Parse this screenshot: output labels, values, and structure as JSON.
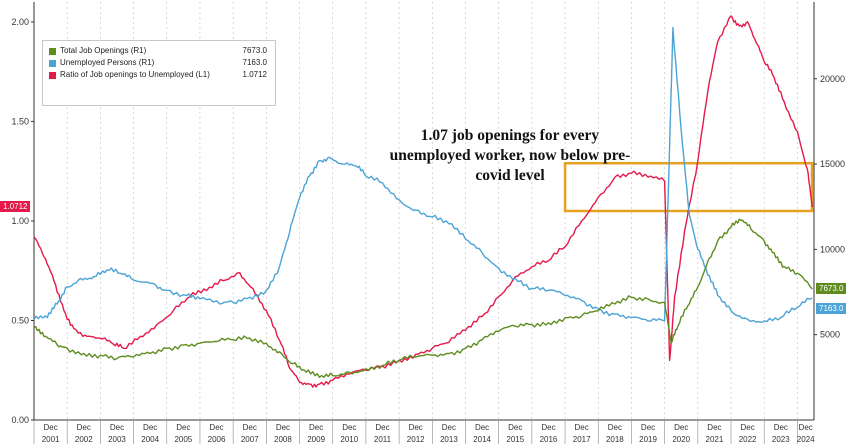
{
  "chart_data": {
    "type": "line",
    "title": "",
    "xlabel": "",
    "x_range": [
      2001.0,
      2024.5
    ],
    "x_years": [
      "2001",
      "2002",
      "2003",
      "2004",
      "2005",
      "2006",
      "2007",
      "2008",
      "2009",
      "2010",
      "2011",
      "2012",
      "2013",
      "2014",
      "2015",
      "2016",
      "2017",
      "2018",
      "2019",
      "2020",
      "2021",
      "2022",
      "2023",
      "2024"
    ],
    "x_minor_label": "Dec",
    "left_axis": {
      "min": 0.0,
      "max": 2.1,
      "ticks": [
        "0.00",
        "0.50",
        "1.00",
        "1.50",
        "2.00"
      ],
      "tick_values": [
        0,
        0.5,
        1.0,
        1.5,
        2.0
      ]
    },
    "right_axis": {
      "min": 0,
      "max": 24500,
      "ticks": [
        "5000",
        "10000",
        "15000",
        "20000"
      ],
      "tick_values": [
        5000,
        10000,
        15000,
        20000
      ]
    },
    "grid": "vertical-dashed",
    "legend": {
      "placement": "top-left",
      "entries": [
        {
          "label": "Total Job Openings (R1)",
          "value": "7673.0",
          "color": "#5f8c1e"
        },
        {
          "label": "Unemployed Persons (R1)",
          "value": "7163.0",
          "color": "#4ba3d6"
        },
        {
          "label": "Ratio of Job openings to Unemployed (L1)",
          "value": "1.0712",
          "color": "#e5194a"
        }
      ]
    },
    "annotation": {
      "lines": [
        "1.07 job openings for every",
        "unemployed worker, now below pre-",
        "covid level"
      ],
      "highlight_box": {
        "x0": 2017.0,
        "x1": 2024.5,
        "y0": 1.05,
        "y1": 1.29,
        "color": "#e8a020"
      }
    },
    "last_value_tags": [
      {
        "text": "1.0712",
        "axis": "left",
        "value": 1.0712,
        "color": "#e5194a"
      },
      {
        "text": "7673.0",
        "axis": "right",
        "value": 7673,
        "color": "#5f8c1e"
      },
      {
        "text": "7163.0",
        "axis": "right",
        "value": 7163,
        "color": "#4ba3d6"
      }
    ],
    "series": [
      {
        "name": "Ratio of Job openings to Unemployed (L1)",
        "axis": "left",
        "color": "#e5194a",
        "x": [
          2001.0,
          2001.3,
          2001.6,
          2001.9,
          2002.2,
          2002.6,
          2003.0,
          2003.4,
          2003.7,
          2004.2,
          2004.7,
          2005.2,
          2005.7,
          2006.2,
          2006.7,
          2007.2,
          2007.6,
          2008.0,
          2008.4,
          2008.7,
          2009.0,
          2009.3,
          2009.6,
          2010.0,
          2010.5,
          2011.0,
          2011.5,
          2012.0,
          2012.5,
          2013.0,
          2013.5,
          2014.0,
          2014.5,
          2015.0,
          2015.5,
          2016.0,
          2016.5,
          2017.0,
          2017.5,
          2018.0,
          2018.5,
          2019.0,
          2019.5,
          2020.0,
          2020.15,
          2020.3,
          2020.6,
          2021.0,
          2021.3,
          2021.6,
          2022.0,
          2022.25,
          2022.5,
          2022.75,
          2023.0,
          2023.3,
          2023.6,
          2024.0,
          2024.3,
          2024.45
        ],
        "y": [
          0.92,
          0.82,
          0.7,
          0.55,
          0.46,
          0.42,
          0.41,
          0.38,
          0.36,
          0.42,
          0.48,
          0.55,
          0.62,
          0.65,
          0.7,
          0.74,
          0.66,
          0.55,
          0.4,
          0.26,
          0.19,
          0.18,
          0.18,
          0.2,
          0.23,
          0.25,
          0.27,
          0.3,
          0.33,
          0.36,
          0.39,
          0.45,
          0.52,
          0.62,
          0.72,
          0.77,
          0.8,
          0.87,
          1.0,
          1.12,
          1.22,
          1.24,
          1.22,
          1.2,
          0.3,
          0.62,
          0.95,
          1.3,
          1.65,
          1.9,
          2.03,
          1.98,
          2.0,
          1.9,
          1.8,
          1.72,
          1.6,
          1.45,
          1.26,
          1.07
        ]
      },
      {
        "name": "Unemployed Persons (R1)",
        "axis": "right",
        "color": "#4ba3d6",
        "x": [
          2001.0,
          2001.4,
          2001.7,
          2002.0,
          2002.4,
          2002.8,
          2003.2,
          2003.6,
          2004.0,
          2004.6,
          2005.0,
          2005.6,
          2006.0,
          2006.6,
          2007.0,
          2007.5,
          2008.0,
          2008.4,
          2008.7,
          2009.0,
          2009.3,
          2009.6,
          2009.9,
          2010.3,
          2010.7,
          2011.0,
          2011.5,
          2012.0,
          2012.5,
          2013.0,
          2013.5,
          2014.0,
          2014.5,
          2015.0,
          2015.5,
          2016.0,
          2016.5,
          2017.0,
          2017.5,
          2018.0,
          2018.5,
          2019.0,
          2019.5,
          2020.0,
          2020.25,
          2020.5,
          2020.75,
          2021.0,
          2021.3,
          2021.6,
          2022.0,
          2022.5,
          2023.0,
          2023.5,
          2024.0,
          2024.45
        ],
        "y": [
          5900,
          6000,
          6800,
          7800,
          8300,
          8400,
          8800,
          8600,
          8200,
          8000,
          7600,
          7300,
          7100,
          6800,
          6900,
          7200,
          7600,
          9000,
          11000,
          13000,
          14300,
          15200,
          15400,
          15000,
          14900,
          14300,
          13900,
          12900,
          12300,
          11900,
          11500,
          10600,
          9800,
          8900,
          8300,
          7700,
          7600,
          7300,
          7000,
          6500,
          6200,
          6000,
          5800,
          5800,
          23000,
          17000,
          12000,
          10000,
          8500,
          7300,
          6400,
          5900,
          5800,
          6000,
          6600,
          7163
        ]
      },
      {
        "name": "Total Job Openings (R1)",
        "axis": "right",
        "color": "#5f8c1e",
        "x": [
          2001.0,
          2001.3,
          2001.7,
          2002.0,
          2002.5,
          2003.0,
          2003.5,
          2004.0,
          2004.5,
          2005.0,
          2005.5,
          2006.0,
          2006.5,
          2007.0,
          2007.5,
          2008.0,
          2008.4,
          2008.8,
          2009.2,
          2009.6,
          2010.0,
          2010.5,
          2011.0,
          2011.5,
          2012.0,
          2012.5,
          2013.0,
          2013.5,
          2014.0,
          2014.5,
          2015.0,
          2015.5,
          2016.0,
          2016.5,
          2017.0,
          2017.5,
          2018.0,
          2018.5,
          2019.0,
          2019.5,
          2020.0,
          2020.2,
          2020.4,
          2020.7,
          2021.0,
          2021.3,
          2021.6,
          2022.0,
          2022.3,
          2022.6,
          2023.0,
          2023.3,
          2023.6,
          2024.0,
          2024.45
        ],
        "y": [
          5400,
          4900,
          4400,
          4200,
          3900,
          3800,
          3600,
          3700,
          3900,
          4200,
          4400,
          4500,
          4600,
          4700,
          4800,
          4500,
          4000,
          3300,
          2800,
          2500,
          2600,
          2800,
          3000,
          3200,
          3500,
          3700,
          3800,
          3900,
          4200,
          4700,
          5200,
          5500,
          5600,
          5700,
          6000,
          6100,
          6400,
          6800,
          7200,
          7100,
          6900,
          4500,
          5500,
          6700,
          7800,
          9300,
          10500,
          11300,
          11700,
          11200,
          10500,
          9800,
          9000,
          8600,
          7673
        ]
      }
    ]
  }
}
